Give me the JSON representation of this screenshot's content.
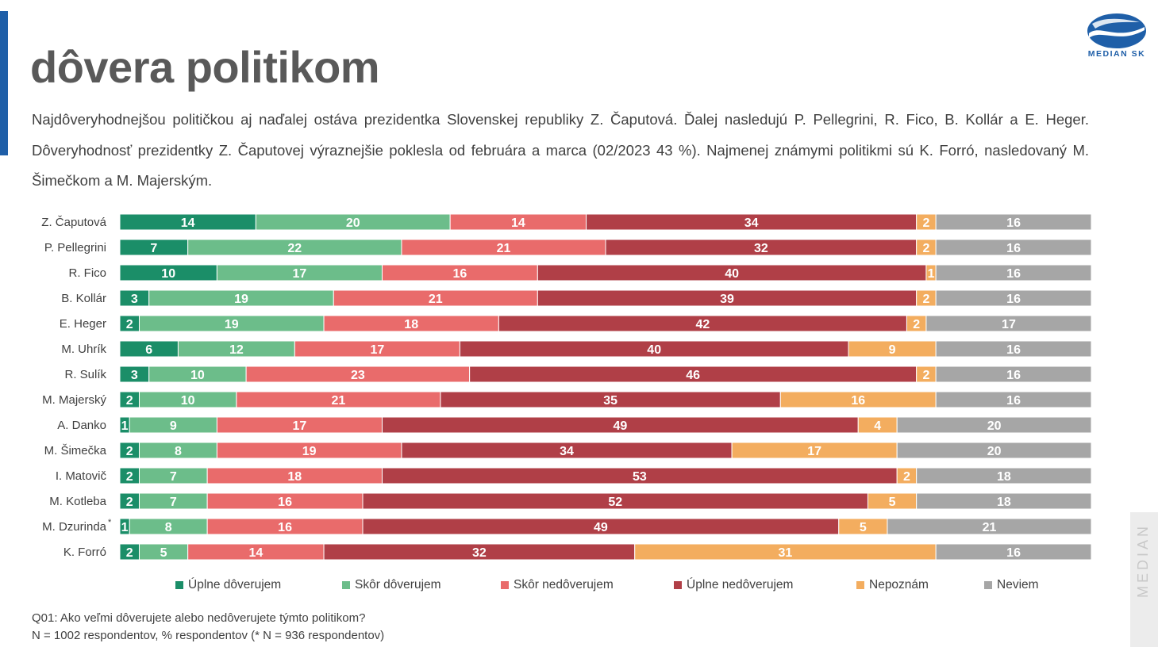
{
  "header": {
    "title": "dôvera politikom",
    "summary": "Najdôveryhodnejšou političkou aj naďalej ostáva prezidentka Slovenskej republiky Z. Čaputová. Ďalej nasledujú P. Pellegrini, R. Fico, B. Kollár a E. Heger. Dôveryhodnosť prezidentky Z. Čaputovej výraznejšie poklesla od februára a marca (02/2023 43 %). Najmenej známymi politikmi sú K. Forró, nasledovaný M. Šimečkom a M. Majerským."
  },
  "brand": {
    "logo_text": "MEDIAN SK",
    "side_text": "MEDIAN",
    "accent_color": "#1f5fa8"
  },
  "footer": {
    "question": "Q01: Ako veľmi dôverujete alebo nedôverujete týmto politikom?",
    "sample": "N = 1002 respondentov, % respondentov (* N = 936 respondentov)"
  },
  "chart_data": {
    "type": "bar",
    "orientation": "horizontal",
    "stacked": true,
    "categories": [
      "Z. Čaputová",
      "P. Pellegrini",
      "R. Fico",
      "B. Kollár",
      "E. Heger",
      "M. Uhrík",
      "R. Sulík",
      "M. Majerský",
      "A. Danko",
      "M. Šimečka",
      "I. Matovič",
      "M. Kotleba",
      "M. Dzurinda",
      "K. Forró"
    ],
    "category_notes": [
      "",
      "",
      "",
      "",
      "",
      "",
      "",
      "",
      "",
      "",
      "",
      "",
      "*",
      ""
    ],
    "series": [
      {
        "name": "Úplne dôverujem",
        "color": "#1b8e68",
        "values": [
          14,
          7,
          10,
          3,
          2,
          6,
          3,
          2,
          1,
          2,
          2,
          2,
          1,
          2
        ]
      },
      {
        "name": "Skôr dôverujem",
        "color": "#6cbd8a",
        "values": [
          20,
          22,
          17,
          19,
          19,
          12,
          10,
          10,
          9,
          8,
          7,
          7,
          8,
          5
        ]
      },
      {
        "name": "Skôr nedôverujem",
        "color": "#e96b6b",
        "values": [
          14,
          21,
          16,
          21,
          18,
          17,
          23,
          21,
          17,
          19,
          18,
          16,
          16,
          14
        ]
      },
      {
        "name": "Úplne nedôverujem",
        "color": "#b03f47",
        "values": [
          34,
          32,
          40,
          39,
          42,
          40,
          46,
          35,
          49,
          34,
          53,
          52,
          49,
          32
        ]
      },
      {
        "name": "Nepoznám",
        "color": "#f3ad5f",
        "values": [
          2,
          2,
          1,
          2,
          2,
          9,
          2,
          16,
          4,
          17,
          2,
          5,
          5,
          31
        ]
      },
      {
        "name": "Neviem",
        "color": "#a6a6a6",
        "values": [
          16,
          16,
          16,
          16,
          17,
          16,
          16,
          16,
          20,
          20,
          18,
          18,
          21,
          16
        ]
      }
    ],
    "xlim": [
      0,
      100
    ],
    "grid": false,
    "legend": "bottom"
  }
}
